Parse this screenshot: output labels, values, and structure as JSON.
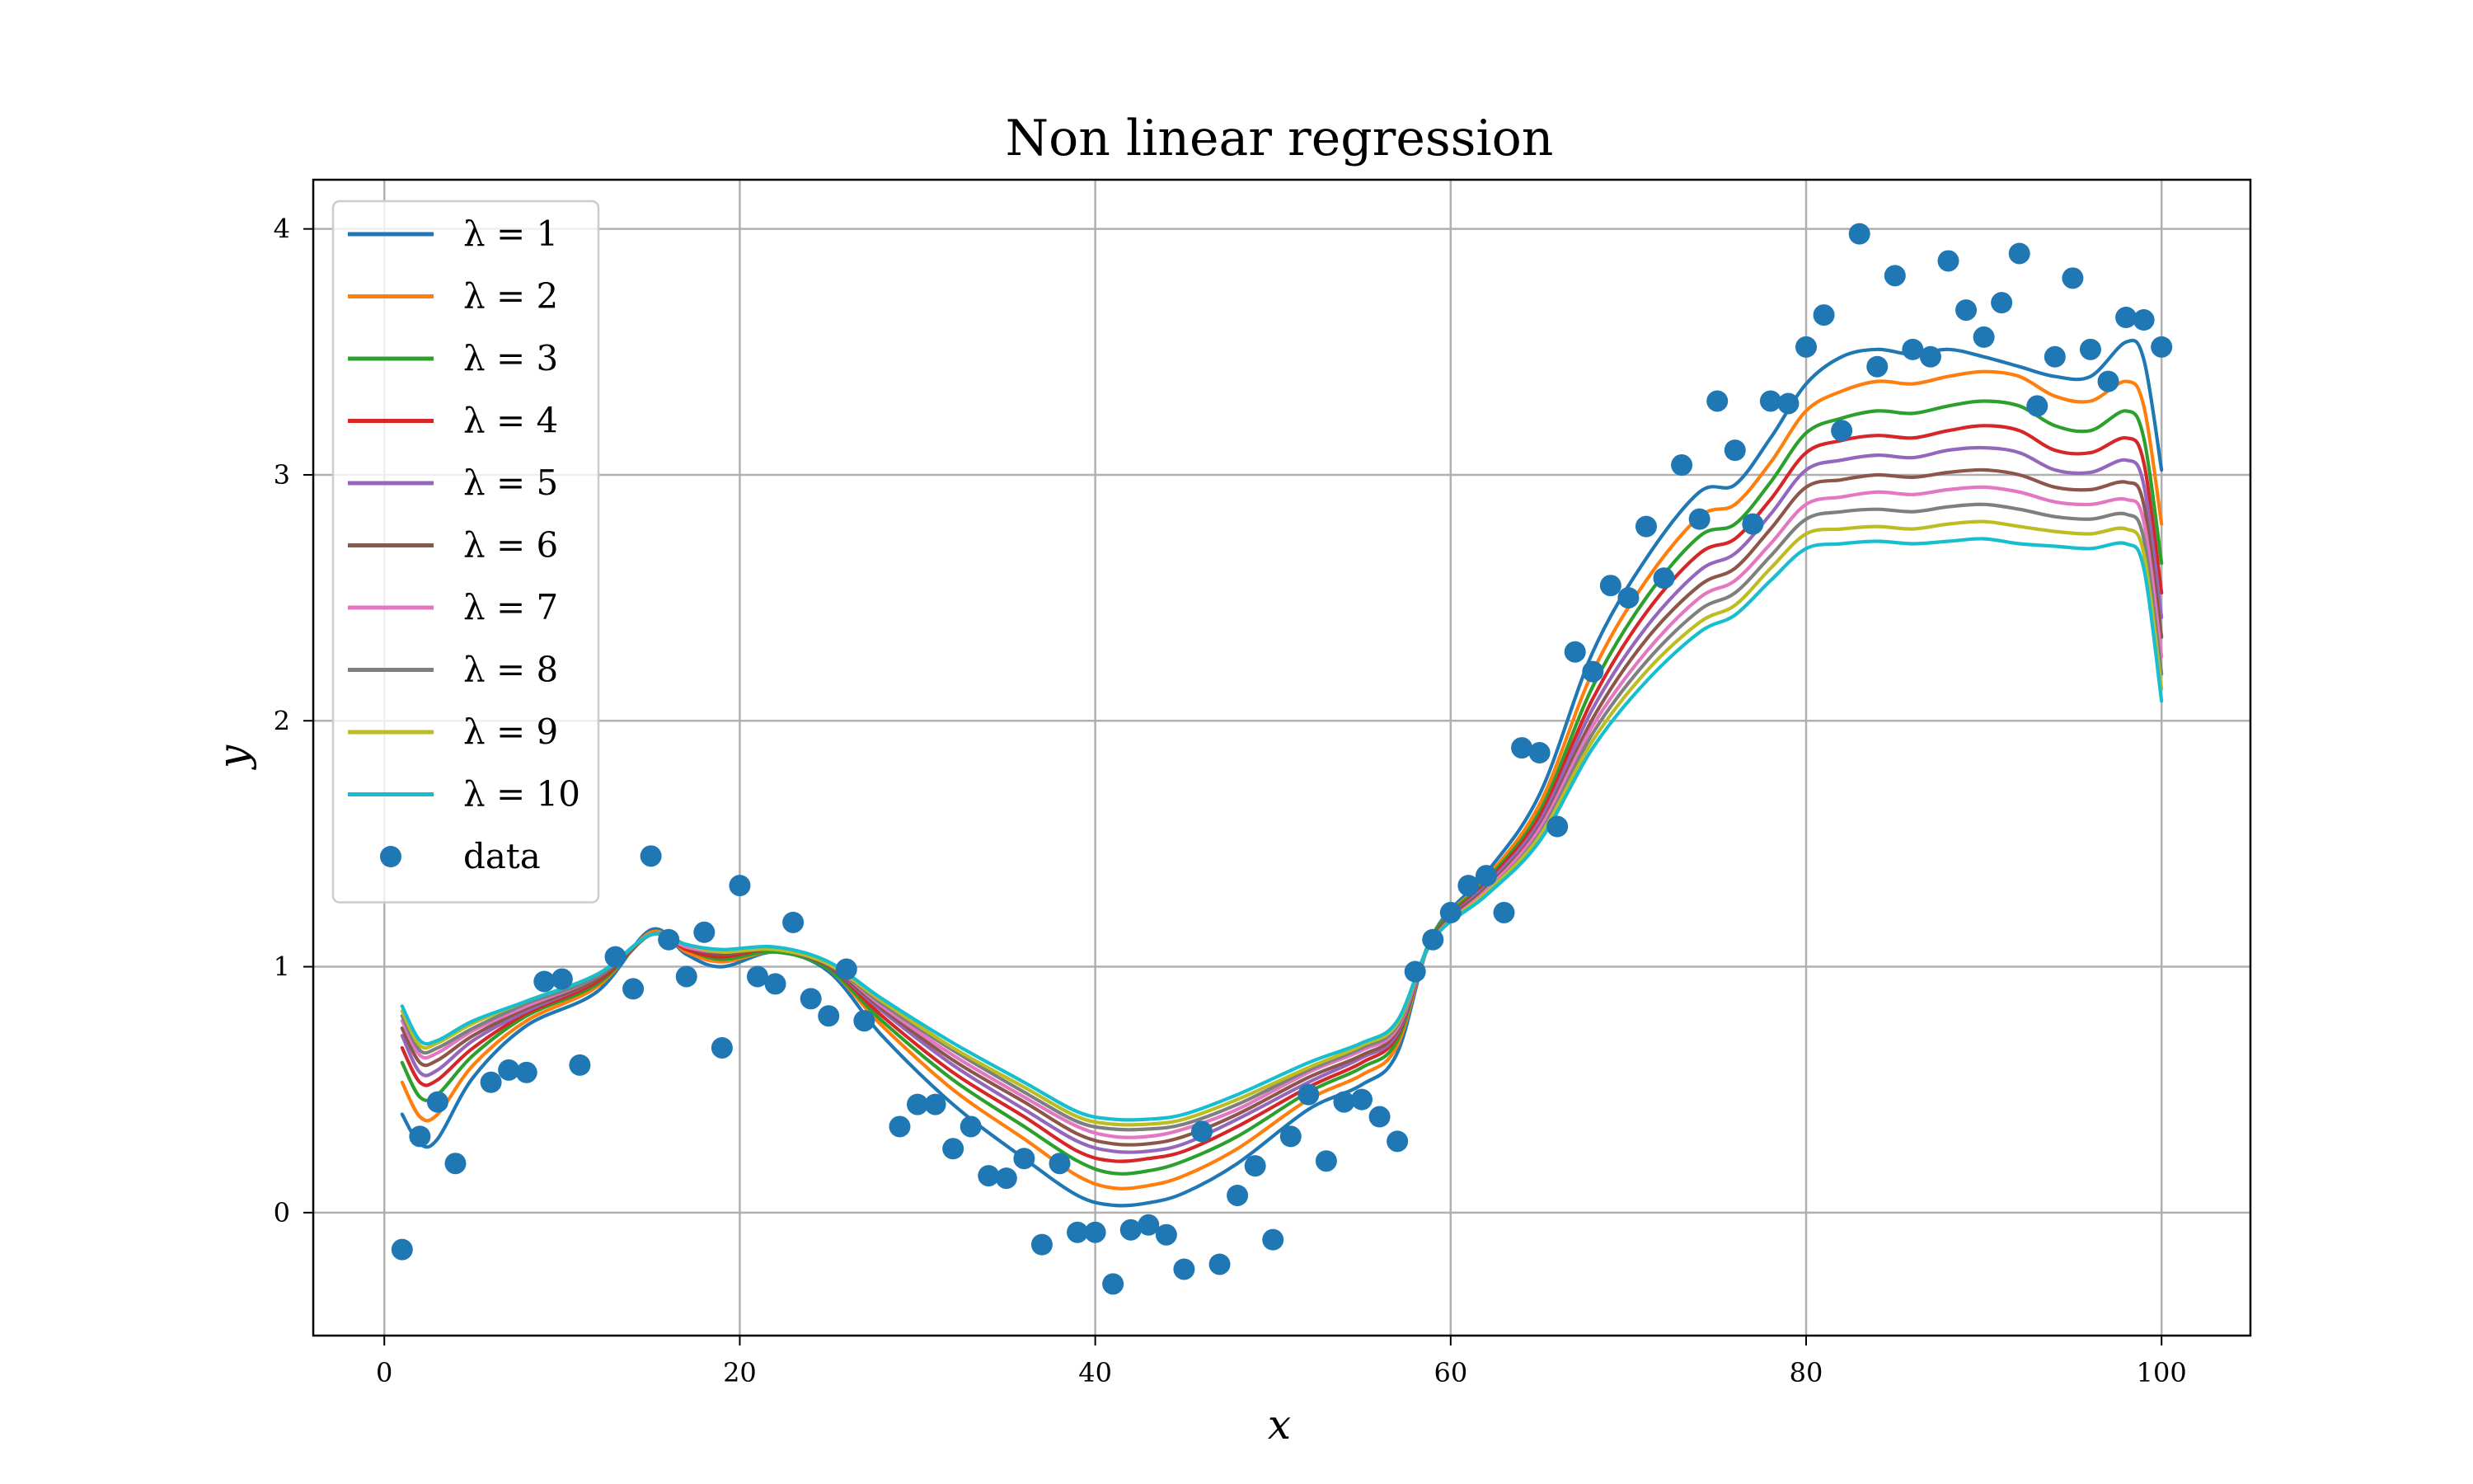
{
  "chart_data": {
    "type": "line",
    "title": "Non linear regression",
    "xlabel": "x",
    "ylabel": "y",
    "xlim": [
      -4,
      105
    ],
    "ylim": [
      -0.5,
      4.2
    ],
    "xticks": [
      0,
      20,
      40,
      60,
      80,
      100
    ],
    "yticks": [
      0,
      1,
      2,
      3,
      4
    ],
    "grid": true,
    "legend_position": "upper-left",
    "series": [
      {
        "name": "λ = 1",
        "color": "#1f77b4",
        "key_x": [
          1,
          2,
          3,
          5,
          8,
          12,
          15,
          17,
          19,
          22,
          25,
          28,
          32,
          36,
          39,
          41,
          43,
          45,
          48,
          52,
          55,
          57,
          59,
          62,
          65,
          68,
          71,
          74,
          76,
          78,
          80,
          82,
          84,
          86,
          88,
          90,
          92,
          94,
          96,
          98,
          99,
          100
        ],
        "y": [
          0.4,
          0.28,
          0.3,
          0.55,
          0.76,
          0.9,
          1.15,
          1.05,
          1.0,
          1.06,
          0.98,
          0.72,
          0.44,
          0.22,
          0.07,
          0.03,
          0.04,
          0.08,
          0.2,
          0.42,
          0.52,
          0.65,
          1.13,
          1.38,
          1.7,
          2.28,
          2.66,
          2.93,
          2.96,
          3.15,
          3.37,
          3.48,
          3.51,
          3.49,
          3.51,
          3.48,
          3.44,
          3.4,
          3.4,
          3.54,
          3.47,
          3.02
        ]
      },
      {
        "name": "λ = 2",
        "color": "#ff7f0e",
        "y": [
          0.53,
          0.39,
          0.4,
          0.6,
          0.78,
          0.92,
          1.14,
          1.06,
          1.02,
          1.06,
          0.99,
          0.76,
          0.5,
          0.3,
          0.15,
          0.1,
          0.11,
          0.15,
          0.26,
          0.46,
          0.56,
          0.68,
          1.13,
          1.36,
          1.66,
          2.2,
          2.57,
          2.83,
          2.88,
          3.05,
          3.26,
          3.34,
          3.38,
          3.37,
          3.4,
          3.42,
          3.4,
          3.32,
          3.3,
          3.38,
          3.28,
          2.8
        ]
      },
      {
        "name": "λ = 3",
        "color": "#2ca02c",
        "y": [
          0.61,
          0.47,
          0.48,
          0.64,
          0.8,
          0.93,
          1.13,
          1.07,
          1.03,
          1.06,
          0.99,
          0.78,
          0.54,
          0.35,
          0.21,
          0.16,
          0.17,
          0.21,
          0.31,
          0.49,
          0.59,
          0.7,
          1.13,
          1.35,
          1.63,
          2.14,
          2.5,
          2.75,
          2.8,
          2.97,
          3.17,
          3.23,
          3.26,
          3.25,
          3.28,
          3.3,
          3.28,
          3.2,
          3.18,
          3.26,
          3.15,
          2.64
        ]
      },
      {
        "name": "λ = 4",
        "color": "#d62728",
        "y": [
          0.67,
          0.53,
          0.54,
          0.67,
          0.81,
          0.94,
          1.13,
          1.07,
          1.04,
          1.07,
          1.0,
          0.8,
          0.57,
          0.39,
          0.25,
          0.21,
          0.22,
          0.25,
          0.35,
          0.51,
          0.61,
          0.72,
          1.12,
          1.34,
          1.61,
          2.09,
          2.44,
          2.68,
          2.74,
          2.9,
          3.09,
          3.14,
          3.16,
          3.15,
          3.18,
          3.2,
          3.18,
          3.1,
          3.09,
          3.15,
          3.05,
          2.52
        ]
      },
      {
        "name": "λ = 5",
        "color": "#9467bd",
        "y": [
          0.72,
          0.57,
          0.58,
          0.7,
          0.82,
          0.95,
          1.13,
          1.08,
          1.05,
          1.07,
          1.0,
          0.82,
          0.6,
          0.42,
          0.29,
          0.25,
          0.25,
          0.28,
          0.38,
          0.53,
          0.63,
          0.73,
          1.12,
          1.33,
          1.59,
          2.05,
          2.38,
          2.61,
          2.68,
          2.84,
          3.02,
          3.06,
          3.08,
          3.07,
          3.1,
          3.11,
          3.09,
          3.02,
          3.01,
          3.06,
          2.96,
          2.42
        ]
      },
      {
        "name": "λ = 6",
        "color": "#8c564b",
        "y": [
          0.75,
          0.61,
          0.62,
          0.72,
          0.83,
          0.95,
          1.13,
          1.08,
          1.05,
          1.07,
          1.0,
          0.83,
          0.62,
          0.45,
          0.32,
          0.28,
          0.28,
          0.31,
          0.4,
          0.55,
          0.64,
          0.74,
          1.12,
          1.32,
          1.57,
          2.01,
          2.33,
          2.55,
          2.62,
          2.78,
          2.95,
          2.98,
          3.0,
          2.99,
          3.01,
          3.02,
          3.0,
          2.95,
          2.94,
          2.97,
          2.88,
          2.34
        ]
      },
      {
        "name": "λ = 7",
        "color": "#e377c2",
        "y": [
          0.78,
          0.64,
          0.65,
          0.74,
          0.84,
          0.96,
          1.13,
          1.08,
          1.06,
          1.07,
          1.01,
          0.84,
          0.64,
          0.47,
          0.35,
          0.31,
          0.31,
          0.34,
          0.42,
          0.57,
          0.66,
          0.75,
          1.11,
          1.31,
          1.56,
          1.98,
          2.28,
          2.5,
          2.57,
          2.72,
          2.88,
          2.91,
          2.93,
          2.92,
          2.94,
          2.95,
          2.93,
          2.89,
          2.88,
          2.9,
          2.81,
          2.26
        ]
      },
      {
        "name": "λ = 8",
        "color": "#7f7f7f",
        "y": [
          0.8,
          0.66,
          0.67,
          0.75,
          0.85,
          0.96,
          1.13,
          1.09,
          1.06,
          1.07,
          1.01,
          0.85,
          0.66,
          0.49,
          0.37,
          0.34,
          0.34,
          0.36,
          0.44,
          0.58,
          0.67,
          0.76,
          1.11,
          1.3,
          1.54,
          1.95,
          2.24,
          2.45,
          2.52,
          2.67,
          2.82,
          2.85,
          2.86,
          2.85,
          2.87,
          2.88,
          2.86,
          2.83,
          2.82,
          2.84,
          2.74,
          2.19
        ]
      },
      {
        "name": "λ = 9",
        "color": "#bcbd22",
        "y": [
          0.82,
          0.68,
          0.69,
          0.77,
          0.86,
          0.97,
          1.13,
          1.09,
          1.06,
          1.07,
          1.01,
          0.86,
          0.67,
          0.51,
          0.39,
          0.36,
          0.36,
          0.38,
          0.46,
          0.59,
          0.68,
          0.77,
          1.11,
          1.3,
          1.53,
          1.92,
          2.2,
          2.4,
          2.47,
          2.62,
          2.76,
          2.78,
          2.79,
          2.78,
          2.8,
          2.81,
          2.79,
          2.77,
          2.76,
          2.78,
          2.68,
          2.13
        ]
      },
      {
        "name": "λ = 10",
        "color": "#17becf",
        "y": [
          0.84,
          0.7,
          0.7,
          0.78,
          0.86,
          0.97,
          1.13,
          1.09,
          1.07,
          1.08,
          1.02,
          0.87,
          0.69,
          0.53,
          0.41,
          0.38,
          0.38,
          0.4,
          0.48,
          0.61,
          0.69,
          0.78,
          1.11,
          1.29,
          1.51,
          1.89,
          2.16,
          2.36,
          2.43,
          2.57,
          2.7,
          2.72,
          2.73,
          2.72,
          2.73,
          2.74,
          2.72,
          2.71,
          2.7,
          2.72,
          2.62,
          2.08
        ]
      }
    ],
    "scatter": {
      "name": "data",
      "color": "#1f77b4",
      "x": [
        1,
        2,
        3,
        4,
        6,
        7,
        8,
        9,
        10,
        11,
        13,
        14,
        15,
        16,
        17,
        18,
        19,
        20,
        21,
        22,
        23,
        24,
        25,
        26,
        27,
        29,
        30,
        31,
        32,
        33,
        34,
        35,
        36,
        37,
        38,
        39,
        40,
        41,
        42,
        43,
        44,
        45,
        46,
        47,
        48,
        49,
        50,
        51,
        52,
        53,
        54,
        55,
        56,
        57,
        58,
        59,
        60,
        61,
        62,
        63,
        64,
        65,
        66,
        67,
        68,
        69,
        70,
        71,
        72,
        73,
        74,
        75,
        76,
        77,
        78,
        79,
        80,
        81,
        82,
        83,
        84,
        85,
        86,
        87,
        88,
        89,
        90,
        91,
        92,
        93,
        94,
        95,
        96,
        97,
        98,
        99,
        100
      ],
      "y": [
        -0.15,
        0.31,
        0.45,
        0.2,
        0.53,
        0.58,
        0.57,
        0.94,
        0.95,
        0.6,
        1.04,
        0.91,
        1.45,
        1.11,
        0.96,
        1.14,
        0.67,
        1.33,
        0.96,
        0.93,
        1.18,
        0.87,
        0.8,
        0.99,
        0.78,
        0.35,
        0.44,
        0.44,
        0.26,
        0.35,
        0.15,
        0.14,
        0.22,
        -0.13,
        0.2,
        -0.08,
        -0.08,
        -0.29,
        -0.07,
        -0.05,
        -0.09,
        -0.23,
        0.33,
        -0.21,
        0.07,
        0.19,
        -0.11,
        0.31,
        0.48,
        0.21,
        0.45,
        0.46,
        0.39,
        0.29,
        0.98,
        1.11,
        1.22,
        1.33,
        1.37,
        1.22,
        1.89,
        1.87,
        1.57,
        2.28,
        2.2,
        2.55,
        2.5,
        2.79,
        2.58,
        3.04,
        2.82,
        3.3,
        3.1,
        2.8,
        3.3,
        3.29,
        3.52,
        3.65,
        3.18,
        3.98,
        3.44,
        3.81,
        3.51,
        3.48,
        3.87,
        3.67,
        3.56,
        3.7,
        3.9,
        3.28,
        3.48,
        3.8,
        3.51,
        3.38,
        3.64,
        3.63,
        3.52
      ]
    }
  }
}
